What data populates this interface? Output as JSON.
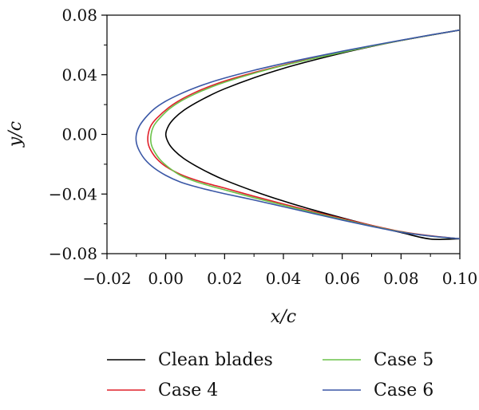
{
  "chart_data": {
    "type": "line",
    "xlabel": "x/c",
    "ylabel": "y/c",
    "xlim": [
      -0.02,
      0.1
    ],
    "ylim": [
      -0.08,
      0.08
    ],
    "xticks": [
      -0.02,
      0.0,
      0.02,
      0.04,
      0.06,
      0.08,
      0.1
    ],
    "xtick_labels": [
      "−0.02",
      "0.00",
      "0.02",
      "0.04",
      "0.06",
      "0.08",
      "0.10"
    ],
    "yticks": [
      -0.08,
      -0.04,
      0.0,
      0.04,
      0.08
    ],
    "ytick_labels": [
      "−0.08",
      "−0.04",
      "0.00",
      "0.04",
      "0.08"
    ],
    "grid": false,
    "legend_position": "bottom",
    "series": [
      {
        "name": "Clean blades",
        "color": "#000000",
        "x": [
          0.1,
          0.09,
          0.08,
          0.07,
          0.06,
          0.05,
          0.04,
          0.03,
          0.02,
          0.015,
          0.01,
          0.006,
          0.003,
          0.001,
          0.0,
          0.001,
          0.003,
          0.006,
          0.01,
          0.015,
          0.02,
          0.03,
          0.04,
          0.05,
          0.06,
          0.07,
          0.08,
          0.09,
          0.1
        ],
        "y": [
          0.07,
          0.0666,
          0.063,
          0.059,
          0.0546,
          0.0497,
          0.0443,
          0.038,
          0.0306,
          0.0261,
          0.0209,
          0.016,
          0.011,
          0.006,
          0.0,
          -0.006,
          -0.011,
          -0.016,
          -0.0209,
          -0.0261,
          -0.0306,
          -0.0381,
          -0.0447,
          -0.0506,
          -0.056,
          -0.0611,
          -0.0658,
          -0.0702,
          -0.07
        ]
      },
      {
        "name": "Case 4",
        "color": "#e0202a",
        "x": [
          0.1,
          0.09,
          0.08,
          0.07,
          0.06,
          0.05,
          0.04,
          0.03,
          0.02,
          0.015,
          0.01,
          0.005,
          0.001,
          -0.003,
          -0.005,
          -0.006,
          -0.006,
          -0.005,
          -0.003,
          0.0,
          0.005,
          0.01,
          0.015,
          0.02,
          0.03,
          0.04,
          0.05,
          0.06,
          0.07,
          0.08,
          0.09,
          0.1
        ],
        "y": [
          0.07,
          0.0666,
          0.063,
          0.0592,
          0.0552,
          0.051,
          0.0465,
          0.0415,
          0.0358,
          0.0323,
          0.0282,
          0.0232,
          0.018,
          0.011,
          0.006,
          0.0,
          -0.006,
          -0.011,
          -0.0165,
          -0.0215,
          -0.0268,
          -0.0305,
          -0.0334,
          -0.036,
          -0.0415,
          -0.0467,
          -0.0517,
          -0.0565,
          -0.061,
          -0.0652,
          -0.068,
          -0.07
        ]
      },
      {
        "name": "Case 5",
        "color": "#6cc24a",
        "x": [
          0.1,
          0.09,
          0.08,
          0.07,
          0.06,
          0.05,
          0.04,
          0.03,
          0.02,
          0.015,
          0.01,
          0.005,
          0.001,
          -0.002,
          -0.004,
          -0.005,
          -0.005,
          -0.004,
          -0.002,
          0.001,
          0.005,
          0.01,
          0.015,
          0.02,
          0.03,
          0.04,
          0.05,
          0.06,
          0.07,
          0.08,
          0.09,
          0.1
        ],
        "y": [
          0.07,
          0.0666,
          0.063,
          0.0592,
          0.0551,
          0.0508,
          0.0462,
          0.041,
          0.035,
          0.0314,
          0.0272,
          0.0222,
          0.0168,
          0.011,
          0.006,
          0.0,
          -0.006,
          -0.011,
          -0.0168,
          -0.0222,
          -0.0275,
          -0.0315,
          -0.0345,
          -0.0372,
          -0.0425,
          -0.0475,
          -0.0523,
          -0.057,
          -0.0614,
          -0.0654,
          -0.0682,
          -0.07
        ]
      },
      {
        "name": "Case 6",
        "color": "#3a57a6",
        "x": [
          0.1,
          0.09,
          0.08,
          0.07,
          0.06,
          0.05,
          0.04,
          0.03,
          0.02,
          0.015,
          0.01,
          0.005,
          0.0,
          -0.004,
          -0.007,
          -0.009,
          -0.01,
          -0.01,
          -0.009,
          -0.007,
          -0.004,
          0.0,
          0.005,
          0.01,
          0.015,
          0.02,
          0.03,
          0.04,
          0.05,
          0.06,
          0.07,
          0.08,
          0.09,
          0.1
        ],
        "y": [
          0.07,
          0.0667,
          0.0632,
          0.0596,
          0.0558,
          0.0518,
          0.0476,
          0.043,
          0.0378,
          0.0348,
          0.0313,
          0.0272,
          0.0223,
          0.017,
          0.011,
          0.0055,
          0.0,
          -0.0055,
          -0.011,
          -0.017,
          -0.0225,
          -0.0275,
          -0.032,
          -0.035,
          -0.0375,
          -0.0398,
          -0.044,
          -0.0485,
          -0.053,
          -0.0575,
          -0.0617,
          -0.0656,
          -0.0682,
          -0.07
        ]
      }
    ]
  }
}
